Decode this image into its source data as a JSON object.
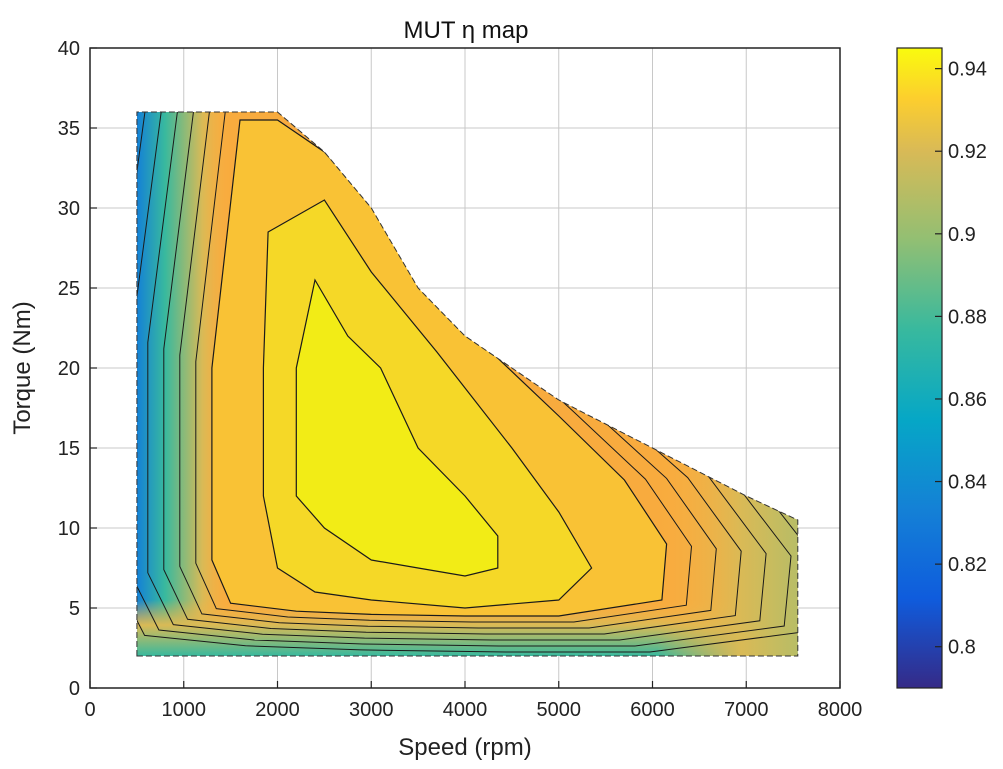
{
  "chart_data": {
    "type": "heatmap",
    "subtype": "filled-contour",
    "title": "MUT η map",
    "xlabel": "Speed (rpm)",
    "ylabel": "Torque  (Nm)",
    "xlim": [
      0,
      8000
    ],
    "ylim": [
      0,
      40
    ],
    "xticks": [
      "0",
      "1000",
      "2000",
      "3000",
      "4000",
      "5000",
      "6000",
      "7000",
      "8000"
    ],
    "yticks": [
      "0",
      "5",
      "10",
      "15",
      "20",
      "25",
      "30",
      "35",
      "40"
    ],
    "grid": true,
    "colormap": "parula",
    "colorbar": {
      "range": [
        0.79,
        0.945
      ],
      "ticks": [
        "0.8",
        "0.82",
        "0.84",
        "0.86",
        "0.88",
        "0.9",
        "0.92",
        "0.94"
      ]
    },
    "domain_boundary": [
      [
        500,
        2
      ],
      [
        7550,
        2
      ],
      [
        7550,
        10.5
      ],
      [
        7000,
        12
      ],
      [
        6500,
        13.5
      ],
      [
        6000,
        15
      ],
      [
        5500,
        16.5
      ],
      [
        5000,
        18
      ],
      [
        4500,
        20
      ],
      [
        4000,
        22
      ],
      [
        3500,
        25
      ],
      [
        3000,
        30
      ],
      [
        2500,
        33.5
      ],
      [
        2000,
        36
      ],
      [
        500,
        36
      ]
    ],
    "peak_region": [
      [
        2400,
        25.5
      ],
      [
        2750,
        22
      ],
      [
        3100,
        20
      ],
      [
        3500,
        15
      ],
      [
        4000,
        12
      ],
      [
        4350,
        9.5
      ],
      [
        4350,
        7.5
      ],
      [
        4000,
        7
      ],
      [
        3500,
        7.5
      ],
      [
        3000,
        8
      ],
      [
        2500,
        10
      ],
      [
        2200,
        12
      ],
      [
        2200,
        20
      ]
    ],
    "contour_levels": [
      {
        "level": 0.93,
        "points": [
          [
            1900,
            28.5
          ],
          [
            2500,
            30.5
          ],
          [
            3000,
            26
          ],
          [
            3700,
            21
          ],
          [
            4500,
            15
          ],
          [
            5000,
            11
          ],
          [
            5350,
            7.5
          ],
          [
            5000,
            5.5
          ],
          [
            4000,
            5
          ],
          [
            3000,
            5.5
          ],
          [
            2400,
            6
          ],
          [
            2000,
            7.5
          ],
          [
            1850,
            12
          ],
          [
            1850,
            20
          ]
        ]
      },
      {
        "level": 0.92,
        "points": [
          [
            1600,
            35.5
          ],
          [
            2000,
            35.5
          ],
          [
            2500,
            33.5
          ],
          [
            3200,
            29
          ],
          [
            4100,
            22
          ],
          [
            5000,
            17
          ],
          [
            5700,
            13
          ],
          [
            6150,
            9
          ],
          [
            6100,
            5.5
          ],
          [
            5000,
            4.5
          ],
          [
            4000,
            4.5
          ],
          [
            3000,
            4.6
          ],
          [
            2200,
            4.8
          ],
          [
            1500,
            5.3
          ],
          [
            1300,
            8
          ],
          [
            1300,
            20
          ]
        ]
      }
    ]
  }
}
